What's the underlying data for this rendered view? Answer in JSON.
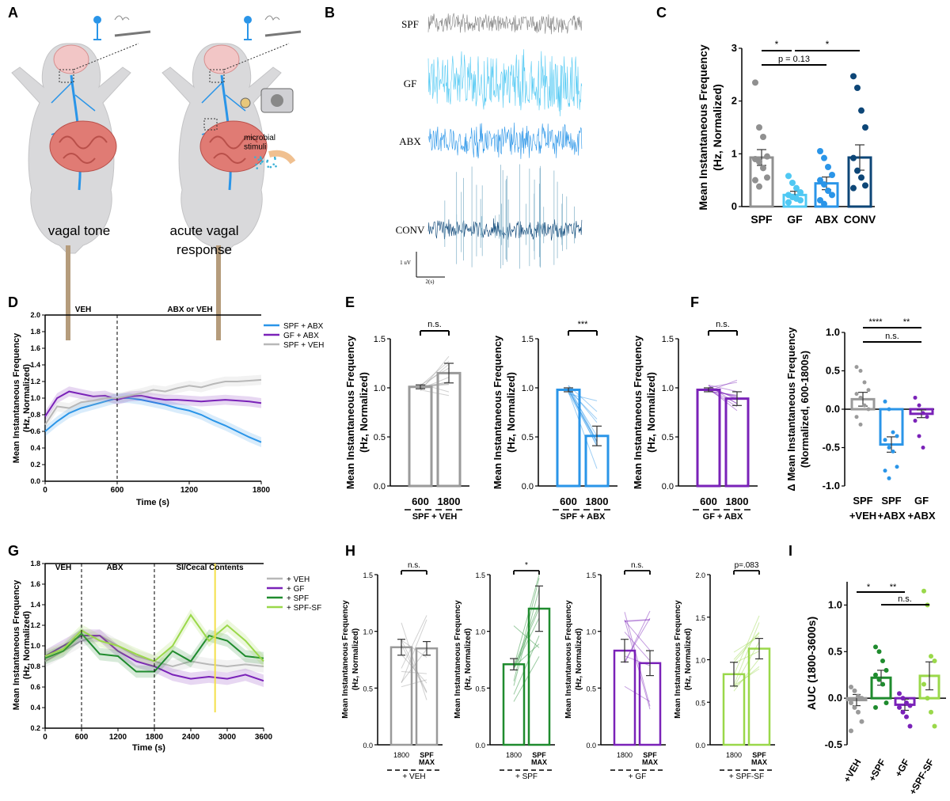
{
  "panel_letters": [
    "A",
    "B",
    "C",
    "D",
    "E",
    "F",
    "G",
    "H",
    "I"
  ],
  "colors": {
    "grey": "#9a9a9a",
    "cyan": "#4fc8f3",
    "blue": "#2a95e8",
    "navy": "#0d4677",
    "purple": "#7a22b8",
    "green": "#1f8b2e",
    "lime": "#9ad84a"
  },
  "panel_a": {
    "captions": [
      "vagal tone",
      "acute vagal\nresponse"
    ],
    "microbial_label": "microbial\nstimuli"
  },
  "chart_data": [
    {
      "id": "B",
      "type": "line",
      "traces": [
        "SPF",
        "GF",
        "ABX",
        "CONV"
      ],
      "scalebar_y": "1 uV",
      "scalebar_x": "2(s)"
    },
    {
      "id": "C",
      "type": "bar",
      "categories": [
        "SPF",
        "GF",
        "ABX",
        "CONV"
      ],
      "values": [
        0.93,
        0.22,
        0.44,
        0.93
      ],
      "errors": [
        0.15,
        0.07,
        0.12,
        0.24
      ],
      "points": [
        [
          2.35,
          1.5,
          1.32,
          0.95,
          0.9,
          0.85,
          0.73,
          0.55,
          0.5,
          0.38
        ],
        [
          0.58,
          0.45,
          0.35,
          0.27,
          0.22,
          0.18,
          0.15,
          0.12,
          0.08
        ],
        [
          1.05,
          0.92,
          0.75,
          0.6,
          0.5,
          0.42,
          0.3,
          0.22,
          0.12,
          0.05
        ],
        [
          2.47,
          2.25,
          1.82,
          1.5,
          0.92,
          0.68,
          0.55,
          0.4,
          0.35
        ]
      ],
      "ylabel": "Mean Instantaneous Frequency\n(Hz, Normalized)",
      "ylim": [
        0,
        3
      ],
      "yticks": [
        "0",
        "1",
        "2",
        "3"
      ],
      "sig": [
        "*",
        "*",
        "p = 0.13"
      ]
    },
    {
      "id": "D",
      "type": "line",
      "ylabel": "Mean Instantaneous Frequency\n(Hz, Normalized)",
      "xlabel": "Time (s)",
      "xlim": [
        0,
        1800
      ],
      "xticks": [
        "0",
        "600",
        "1200",
        "1800"
      ],
      "ylim": [
        0,
        2
      ],
      "yticks": [
        "0.0",
        "0.2",
        "0.4",
        "0.6",
        "0.8",
        "1.0",
        "1.2",
        "1.4",
        "1.6",
        "1.8",
        "2.0"
      ],
      "phases": [
        "VEH",
        "ABX or VEH"
      ],
      "series": [
        {
          "name": "SPF + ABX",
          "x": [
            0,
            100,
            200,
            300,
            400,
            500,
            600,
            700,
            800,
            900,
            1000,
            1100,
            1200,
            1300,
            1400,
            1500,
            1600,
            1700,
            1800
          ],
          "y": [
            0.6,
            0.72,
            0.82,
            0.88,
            0.92,
            0.96,
            1.0,
            1.0,
            0.98,
            0.95,
            0.92,
            0.88,
            0.85,
            0.8,
            0.73,
            0.67,
            0.6,
            0.53,
            0.47
          ]
        },
        {
          "name": "GF + ABX",
          "x": [
            0,
            100,
            200,
            300,
            400,
            500,
            600,
            700,
            800,
            900,
            1000,
            1100,
            1200,
            1300,
            1400,
            1500,
            1600,
            1700,
            1800
          ],
          "y": [
            0.78,
            1.0,
            1.08,
            1.05,
            1.02,
            1.03,
            0.98,
            1.02,
            1.03,
            1.0,
            0.98,
            0.98,
            0.97,
            0.96,
            0.97,
            0.98,
            0.97,
            0.96,
            0.94
          ]
        },
        {
          "name": "SPF + VEH",
          "x": [
            0,
            100,
            200,
            300,
            400,
            500,
            600,
            700,
            800,
            900,
            1000,
            1100,
            1200,
            1300,
            1400,
            1500,
            1600,
            1700,
            1800
          ],
          "y": [
            0.68,
            0.9,
            0.88,
            0.95,
            0.97,
            1.0,
            1.0,
            1.03,
            1.06,
            1.1,
            1.08,
            1.12,
            1.15,
            1.13,
            1.17,
            1.2,
            1.2,
            1.21,
            1.22
          ]
        }
      ]
    },
    {
      "id": "E",
      "type": "bar",
      "ylabel": "Mean Instantaneous Frequency\n(Hz, Normalized)",
      "ylim": [
        0,
        1.5
      ],
      "yticks": [
        "0.0",
        "0.5",
        "1.0",
        "1.5"
      ],
      "groups": [
        {
          "label": "SPF + VEH",
          "categories": [
            "600",
            "1800"
          ],
          "values": [
            1.01,
            1.15
          ],
          "errors": [
            0.02,
            0.1
          ],
          "sig": "n.s."
        },
        {
          "label": "SPF + ABX",
          "categories": [
            "600",
            "1800"
          ],
          "values": [
            0.98,
            0.51
          ],
          "errors": [
            0.02,
            0.1
          ],
          "sig": "***"
        },
        {
          "label": "GF + ABX",
          "categories": [
            "600",
            "1800"
          ],
          "values": [
            0.98,
            0.89
          ],
          "errors": [
            0.02,
            0.07
          ],
          "sig": "n.s."
        }
      ]
    },
    {
      "id": "F",
      "type": "bar",
      "ylabel": "Δ Mean Instantaneous  Frequency\n(Normalized, 600-1800s)",
      "categories": [
        "SPF\n+VEH",
        "SPF\n+ABX",
        "GF\n+ABX"
      ],
      "values": [
        0.13,
        -0.46,
        -0.06
      ],
      "errors": [
        0.09,
        0.1,
        0.05
      ],
      "points": [
        [
          0.55,
          0.5,
          0.35,
          0.25,
          0.2,
          0.15,
          0.05,
          0.0,
          -0.1,
          -0.2
        ],
        [
          0.1,
          0.0,
          -0.3,
          -0.35,
          -0.4,
          -0.5,
          -0.55,
          -0.75,
          -0.8,
          -0.9
        ],
        [
          0.15,
          0.05,
          -0.05,
          -0.1,
          -0.15,
          -0.35,
          -0.5
        ]
      ],
      "ylim": [
        -1,
        1
      ],
      "yticks": [
        "-1.0",
        "-0.5",
        "0.0",
        "0.5",
        "1.0"
      ],
      "sig": [
        "****",
        "**",
        "n.s."
      ]
    },
    {
      "id": "G",
      "type": "line",
      "ylabel": "Mean Instantaneous Frequency\n(Hz, Normalized)",
      "xlabel": "Time (s)",
      "xlim": [
        0,
        3600
      ],
      "xticks": [
        "0",
        "600",
        "1200",
        "1800",
        "2400",
        "3000",
        "3600"
      ],
      "ylim": [
        0.2,
        1.8
      ],
      "yticks": [
        "0.2",
        "0.4",
        "0.6",
        "0.8",
        "1.0",
        "1.2",
        "1.4",
        "1.6",
        "1.8"
      ],
      "phases": [
        "VEH",
        "ABX",
        "SI/Cecal Contents"
      ],
      "series": [
        {
          "name": "+ VEH",
          "x": [
            0,
            300,
            600,
            900,
            1200,
            1500,
            1800,
            2100,
            2400,
            2700,
            3000,
            3300,
            3600
          ],
          "y": [
            0.85,
            0.95,
            1.05,
            1.1,
            1.0,
            0.9,
            0.85,
            0.8,
            0.85,
            0.82,
            0.8,
            0.82,
            0.8
          ]
        },
        {
          "name": "+ GF",
          "x": [
            0,
            300,
            600,
            900,
            1200,
            1500,
            1800,
            2100,
            2400,
            2700,
            3000,
            3300,
            3600
          ],
          "y": [
            0.9,
            1.0,
            1.1,
            1.1,
            0.95,
            0.85,
            0.8,
            0.72,
            0.68,
            0.7,
            0.68,
            0.72,
            0.66
          ]
        },
        {
          "name": "+ SPF",
          "x": [
            0,
            300,
            600,
            900,
            1200,
            1500,
            1800,
            2100,
            2400,
            2700,
            3000,
            3300,
            3600
          ],
          "y": [
            0.88,
            0.95,
            1.12,
            0.92,
            0.9,
            0.75,
            0.75,
            0.95,
            0.85,
            1.1,
            1.05,
            0.9,
            0.88
          ]
        },
        {
          "name": "+ SPF-SF",
          "x": [
            0,
            300,
            600,
            900,
            1200,
            1500,
            1800,
            2100,
            2400,
            2700,
            3000,
            3300,
            3600
          ],
          "y": [
            0.9,
            0.97,
            1.15,
            1.05,
            1.0,
            0.92,
            0.85,
            1.0,
            1.3,
            1.05,
            1.2,
            1.05,
            0.85
          ]
        }
      ]
    },
    {
      "id": "H",
      "type": "bar",
      "ylabel": "Mean Instantaneous Frequency\n(Hz, Normalized)",
      "groups": [
        {
          "label": "+ VEH",
          "categories": [
            "1800",
            "SPF\nMAX"
          ],
          "values": [
            0.86,
            0.85
          ],
          "errors": [
            0.07,
            0.06
          ],
          "sig": "n.s.",
          "ylim": [
            0,
            1.5
          ],
          "yticks": [
            "0.0",
            "0.5",
            "1.0",
            "1.5"
          ]
        },
        {
          "label": "+ SPF",
          "categories": [
            "1800",
            "SPF\nMAX"
          ],
          "values": [
            0.71,
            1.2
          ],
          "errors": [
            0.05,
            0.2
          ],
          "sig": "*",
          "ylim": [
            0,
            1.5
          ],
          "yticks": [
            "0.0",
            "0.5",
            "1.0",
            "1.5"
          ]
        },
        {
          "label": "+ GF",
          "categories": [
            "1800",
            "SPF\nMAX"
          ],
          "values": [
            0.83,
            0.72
          ],
          "errors": [
            0.1,
            0.11
          ],
          "sig": "n.s.",
          "ylim": [
            0,
            1.5
          ],
          "yticks": [
            "0.0",
            "0.5",
            "1.0",
            "1.5"
          ]
        },
        {
          "label": "+ SPF-SF",
          "categories": [
            "1800",
            "SPF\nMAX"
          ],
          "values": [
            0.83,
            1.13
          ],
          "errors": [
            0.14,
            0.12
          ],
          "sig": "p=.083",
          "ylim": [
            0,
            2
          ],
          "yticks": [
            "0.0",
            "0.5",
            "1.0",
            "1.5",
            "2.0"
          ]
        }
      ]
    },
    {
      "id": "I",
      "type": "bar",
      "ylabel": "AUC (1800-3600s)",
      "categories": [
        "+VEH",
        "+SPF",
        "+GF",
        "+SPF-SF"
      ],
      "values": [
        -0.02,
        0.22,
        -0.07,
        0.24
      ],
      "errors": [
        0.06,
        0.08,
        0.06,
        0.15
      ],
      "points": [
        [
          0.12,
          0.08,
          0.02,
          0.0,
          -0.05,
          -0.1,
          -0.15,
          -0.25,
          -0.35
        ],
        [
          0.55,
          0.5,
          0.4,
          0.3,
          0.25,
          0.2,
          0.15,
          -0.05,
          -0.1
        ],
        [
          0.05,
          0.0,
          -0.05,
          -0.08,
          -0.1,
          -0.15,
          -0.2,
          -0.3
        ],
        [
          1.15,
          1.0,
          0.45,
          0.4,
          0.15,
          0.0,
          -0.15,
          -0.3
        ]
      ],
      "ylim": [
        -0.5,
        1.25
      ],
      "yticks": [
        "-0.5",
        "0.0",
        "0.5",
        "1.0"
      ],
      "sig": [
        "*",
        "**",
        "n.s."
      ]
    }
  ]
}
